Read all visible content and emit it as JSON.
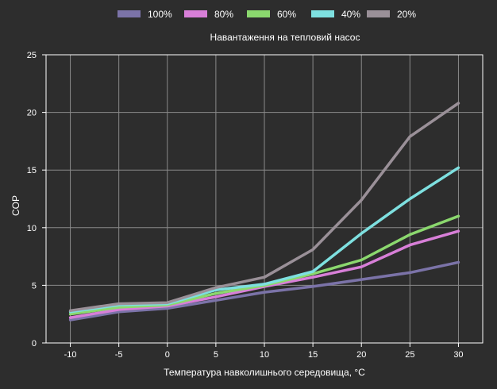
{
  "chart_data": {
    "type": "line",
    "legend_title": "Навантаження на тепловий насос",
    "legend_position": "top",
    "xlabel": "Температура навколишнього середовища, °C",
    "ylabel": "COP",
    "x": [
      -10,
      -5,
      0,
      5,
      10,
      15,
      20,
      25,
      30
    ],
    "x_ticks": [
      "-10",
      "-5",
      "0",
      "5",
      "10",
      "15",
      "20",
      "25",
      "30"
    ],
    "y_ticks": [
      "0",
      "5",
      "10",
      "15",
      "20",
      "25"
    ],
    "xlim": [
      -12.5,
      32.5
    ],
    "ylim": [
      0,
      25
    ],
    "grid": true,
    "series": [
      {
        "name": "100%",
        "color": "#7b73a8",
        "values": [
          2.0,
          2.7,
          3.0,
          3.7,
          4.4,
          4.9,
          5.5,
          6.1,
          7.0
        ]
      },
      {
        "name": "80%",
        "color": "#d87fd8",
        "values": [
          2.2,
          2.9,
          3.2,
          4.0,
          4.9,
          5.7,
          6.6,
          8.5,
          9.7
        ]
      },
      {
        "name": "60%",
        "color": "#8bd86e",
        "values": [
          2.5,
          3.1,
          3.3,
          4.3,
          5.0,
          6.0,
          7.2,
          9.4,
          11.0
        ]
      },
      {
        "name": "40%",
        "color": "#7ee0e0",
        "values": [
          2.7,
          3.3,
          3.4,
          4.6,
          5.1,
          6.2,
          9.5,
          12.5,
          15.2
        ]
      },
      {
        "name": "20%",
        "color": "#9a9098",
        "values": [
          2.8,
          3.4,
          3.5,
          4.8,
          5.7,
          8.1,
          12.4,
          17.9,
          20.8
        ]
      }
    ]
  }
}
